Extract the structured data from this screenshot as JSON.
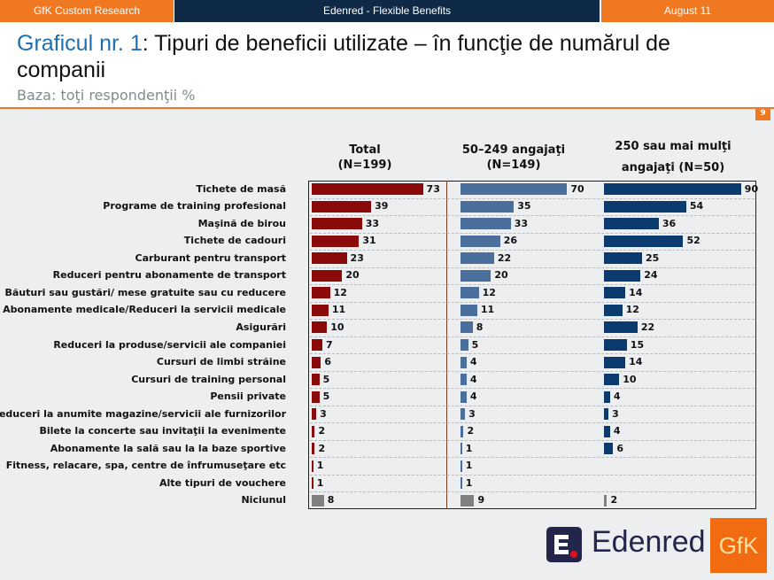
{
  "header": {
    "left": "GfK Custom Research",
    "center": "Edenred - Flexible Benefits",
    "right": "August 11"
  },
  "title": {
    "highlight": "Graficul nr. 1",
    "rest": ": Tipuri de beneficii utilizate – în funcţie de numărul de companii"
  },
  "subtitle": "Baza: toţi respondenţii %",
  "page_number": "9",
  "colors": {
    "orange": "#f07820",
    "navy": "#0e2a47",
    "total": "#8a0a0a",
    "mid": "#4a6f9c",
    "large": "#0b3a6e",
    "none": "#808080"
  },
  "logos": {
    "edenred": "Edenred",
    "gfk": "GfK"
  },
  "chart_data": {
    "type": "bar",
    "orientation": "horizontal",
    "categories": [
      "Tichete de masă",
      "Programe de training profesional",
      "Maşină de birou",
      "Tichete de cadouri",
      "Carburant pentru transport",
      "Reduceri pentru abonamente de transport",
      "Băuturi sau gustări/ mese gratuite sau cu reducere",
      "Abonamente medicale/Reduceri la servicii medicale",
      "Asigurări",
      "Reduceri la produse/servicii ale companiei",
      "Cursuri de limbi străine",
      "Cursuri de training personal",
      "Pensii private",
      "Reduceri la anumite magazine/servicii ale furnizorilor",
      "Bilete la concerte sau invitaţii la evenimente",
      "Abonamente la sală sau la la baze sportive",
      "Fitness, relacare, spa, centre de înfrumuseţare etc",
      "Alte tipuri de vouchere",
      "Niciunul"
    ],
    "series": [
      {
        "name": "Total (N=199)",
        "values": [
          73,
          39,
          33,
          31,
          23,
          20,
          12,
          11,
          10,
          7,
          6,
          5,
          5,
          3,
          2,
          2,
          1,
          1,
          8
        ]
      },
      {
        "name": "50–249 angajaţi (N=149)",
        "values": [
          70,
          35,
          33,
          26,
          22,
          20,
          12,
          11,
          8,
          5,
          4,
          4,
          4,
          3,
          2,
          1,
          1,
          1,
          9
        ]
      },
      {
        "name": "250 sau mai mulţi angajaţi (N=50)",
        "values": [
          90,
          54,
          36,
          52,
          25,
          24,
          14,
          12,
          22,
          15,
          14,
          10,
          4,
          3,
          4,
          6,
          null,
          null,
          2
        ]
      }
    ],
    "unit": "%",
    "grid": true
  }
}
